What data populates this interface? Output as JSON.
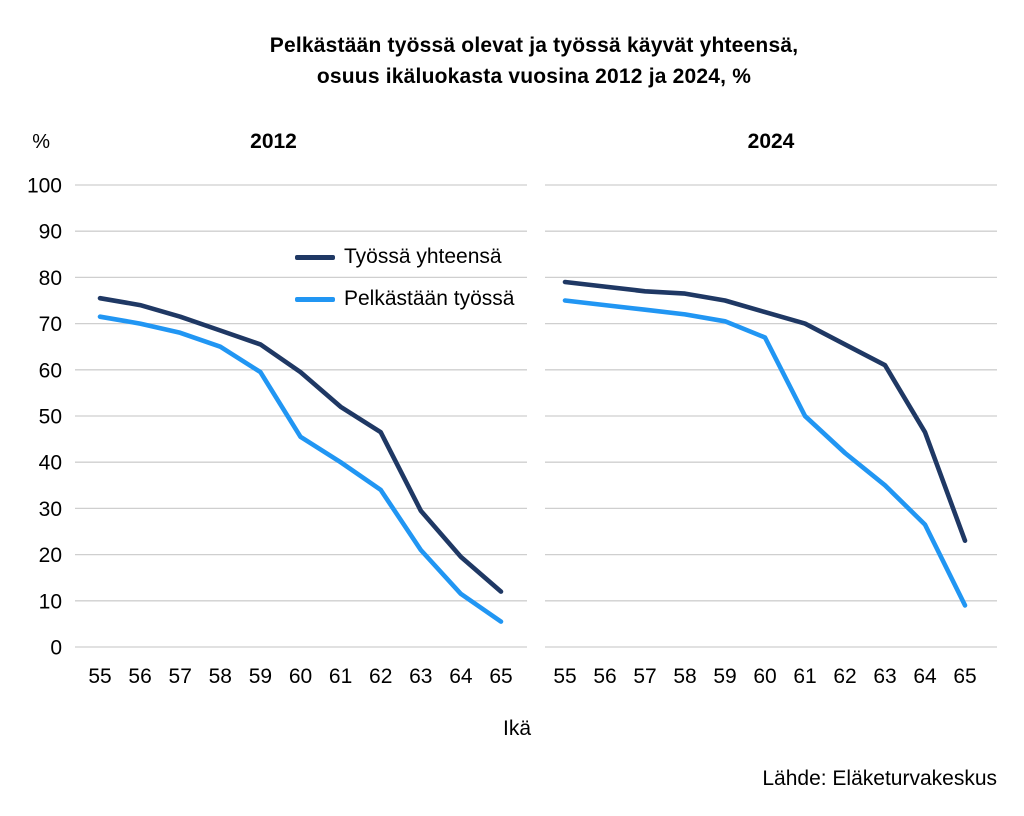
{
  "title": {
    "line1": "Pelkästään työssä olevat ja työssä käyvät yhteensä,",
    "line2": "osuus ikäluokasta vuosina 2012 ja 2024, %"
  },
  "y_axis": {
    "unit_label": "%",
    "ticks": [
      100,
      90,
      80,
      70,
      60,
      50,
      40,
      30,
      20,
      10,
      0
    ]
  },
  "x_axis": {
    "title": "Ikä",
    "ages": [
      55,
      56,
      57,
      58,
      59,
      60,
      61,
      62,
      63,
      64,
      65
    ]
  },
  "panels": [
    {
      "label": "2012"
    },
    {
      "label": "2024"
    }
  ],
  "legend": [
    {
      "label": "Työssä yhteensä",
      "color": "#1f3864"
    },
    {
      "label": "Pelkästään työssä",
      "color": "#2196f3"
    }
  ],
  "source": "Lähde: Eläketurvakeskus",
  "colors": {
    "series_total": "#1f3864",
    "series_only_work": "#2196f3",
    "gridline": "#cfcfcf",
    "text": "#000000",
    "background": "#ffffff"
  },
  "chart_data": [
    {
      "type": "line",
      "title": "2012",
      "x": [
        55,
        56,
        57,
        58,
        59,
        60,
        61,
        62,
        63,
        64,
        65
      ],
      "xlabel": "Ikä",
      "ylabel": "%",
      "ylim": [
        0,
        100
      ],
      "grid": true,
      "legend_position": "upper-right-of-left-panel",
      "series": [
        {
          "name": "Työssä yhteensä",
          "color": "#1f3864",
          "values": [
            75.5,
            74,
            71.5,
            68.5,
            65.5,
            59.5,
            52,
            46.5,
            29.5,
            19.5,
            12
          ]
        },
        {
          "name": "Pelkästään työssä",
          "color": "#2196f3",
          "values": [
            71.5,
            70,
            68,
            65,
            59.5,
            45.5,
            40,
            34,
            21,
            11.5,
            5.5
          ]
        }
      ]
    },
    {
      "type": "line",
      "title": "2024",
      "x": [
        55,
        56,
        57,
        58,
        59,
        60,
        61,
        62,
        63,
        64,
        65
      ],
      "xlabel": "Ikä",
      "ylabel": "%",
      "ylim": [
        0,
        100
      ],
      "grid": true,
      "series": [
        {
          "name": "Työssä yhteensä",
          "color": "#1f3864",
          "values": [
            79,
            78,
            77,
            76.5,
            75,
            72.5,
            70,
            65.5,
            61,
            46.5,
            23
          ]
        },
        {
          "name": "Pelkästään työssä",
          "color": "#2196f3",
          "values": [
            75,
            74,
            73,
            72,
            70.5,
            67,
            50,
            42,
            35,
            26.5,
            9
          ]
        }
      ]
    }
  ]
}
